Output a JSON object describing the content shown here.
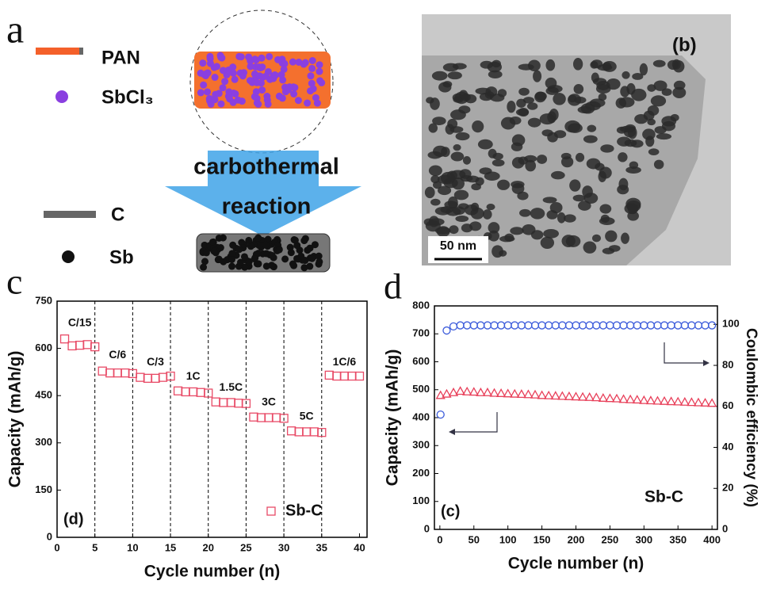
{
  "panel_a": {
    "label": "a",
    "legend": [
      "PAN",
      "SbCl₃",
      "C",
      "Sb"
    ],
    "arrow_text": [
      "carbothermal",
      "reaction"
    ]
  },
  "panel_b": {
    "label": "(b)",
    "scale_bar": "50 nm"
  },
  "chart_data": [
    {
      "type": "scatter",
      "panel_label": "c",
      "inset_label": "(d)",
      "x_label": "Cycle number (n)",
      "y_label": "Capacity (mAh/g)",
      "xlim": [
        0,
        41
      ],
      "xticks": [
        0,
        5,
        10,
        15,
        20,
        25,
        30,
        35,
        40
      ],
      "ylim": [
        0,
        750
      ],
      "yticks": [
        0,
        150,
        300,
        450,
        600,
        750
      ],
      "vlines": [
        5,
        10,
        15,
        20,
        25,
        30,
        35
      ],
      "annotations": [
        "C/15",
        "C/6",
        "C/3",
        "1C",
        "1.5C",
        "3C",
        "5C",
        "1C/6"
      ],
      "legend": "lower right",
      "x": [
        1,
        2,
        3,
        4,
        5,
        6,
        7,
        8,
        9,
        10,
        11,
        12,
        13,
        14,
        15,
        16,
        17,
        18,
        19,
        20,
        21,
        22,
        23,
        24,
        25,
        26,
        27,
        28,
        29,
        30,
        31,
        32,
        33,
        34,
        35,
        36,
        37,
        38,
        39,
        40
      ],
      "series": [
        {
          "name": "Sb-C",
          "color": "#e84a66",
          "marker": "square",
          "values": [
            630,
            608,
            610,
            612,
            605,
            528,
            522,
            522,
            522,
            520,
            508,
            505,
            505,
            508,
            512,
            465,
            462,
            462,
            460,
            458,
            430,
            428,
            428,
            426,
            425,
            382,
            380,
            380,
            380,
            378,
            338,
            335,
            335,
            335,
            333,
            515,
            512,
            512,
            512,
            512
          ]
        }
      ]
    },
    {
      "type": "scatter",
      "panel_label": "d",
      "inset_label": "(c)",
      "annotation": "Sb-C",
      "x_label": "Cycle number (n)",
      "y_label": "Capacity (mAh/g)",
      "y2_label": "Coulombic efficiency (%)",
      "xlim": [
        -8,
        408
      ],
      "xticks": [
        0,
        50,
        100,
        150,
        200,
        250,
        300,
        350,
        400
      ],
      "ylim": [
        0,
        800
      ],
      "yticks": [
        0,
        100,
        200,
        300,
        400,
        500,
        600,
        700,
        800
      ],
      "y2lim": [
        0,
        109
      ],
      "y2ticks": [
        0,
        20,
        40,
        60,
        80,
        100
      ],
      "x": [
        1,
        10,
        20,
        30,
        40,
        50,
        60,
        70,
        80,
        90,
        100,
        110,
        120,
        130,
        140,
        150,
        160,
        170,
        180,
        190,
        200,
        210,
        220,
        230,
        240,
        250,
        260,
        270,
        280,
        290,
        300,
        310,
        320,
        330,
        340,
        350,
        360,
        370,
        380,
        390,
        400
      ],
      "series": [
        {
          "color": "#e8405a",
          "marker": "triangle",
          "values": [
            480,
            485,
            490,
            495,
            493,
            492,
            490,
            490,
            488,
            487,
            486,
            485,
            484,
            483,
            482,
            480,
            479,
            478,
            477,
            476,
            475,
            474,
            473,
            472,
            470,
            469,
            468,
            466,
            465,
            464,
            462,
            461,
            460,
            459,
            458,
            457,
            456,
            455,
            454,
            453,
            452
          ]
        },
        {
          "color": "#3b5bdb",
          "marker": "circle",
          "axis": "y2",
          "values": [
            56,
            97,
            99,
            99.5,
            99.5,
            99.5,
            99.5,
            99.5,
            99.5,
            99.5,
            99.5,
            99.5,
            99.5,
            99.5,
            99.5,
            99.5,
            99.5,
            99.5,
            99.5,
            99.5,
            99.5,
            99.5,
            99.5,
            99.5,
            99.5,
            99.5,
            99.5,
            99.5,
            99.5,
            99.5,
            99.5,
            99.5,
            99.5,
            99.5,
            99.5,
            99.5,
            99.5,
            99.5,
            99.5,
            99.5,
            99.5
          ]
        }
      ]
    }
  ]
}
